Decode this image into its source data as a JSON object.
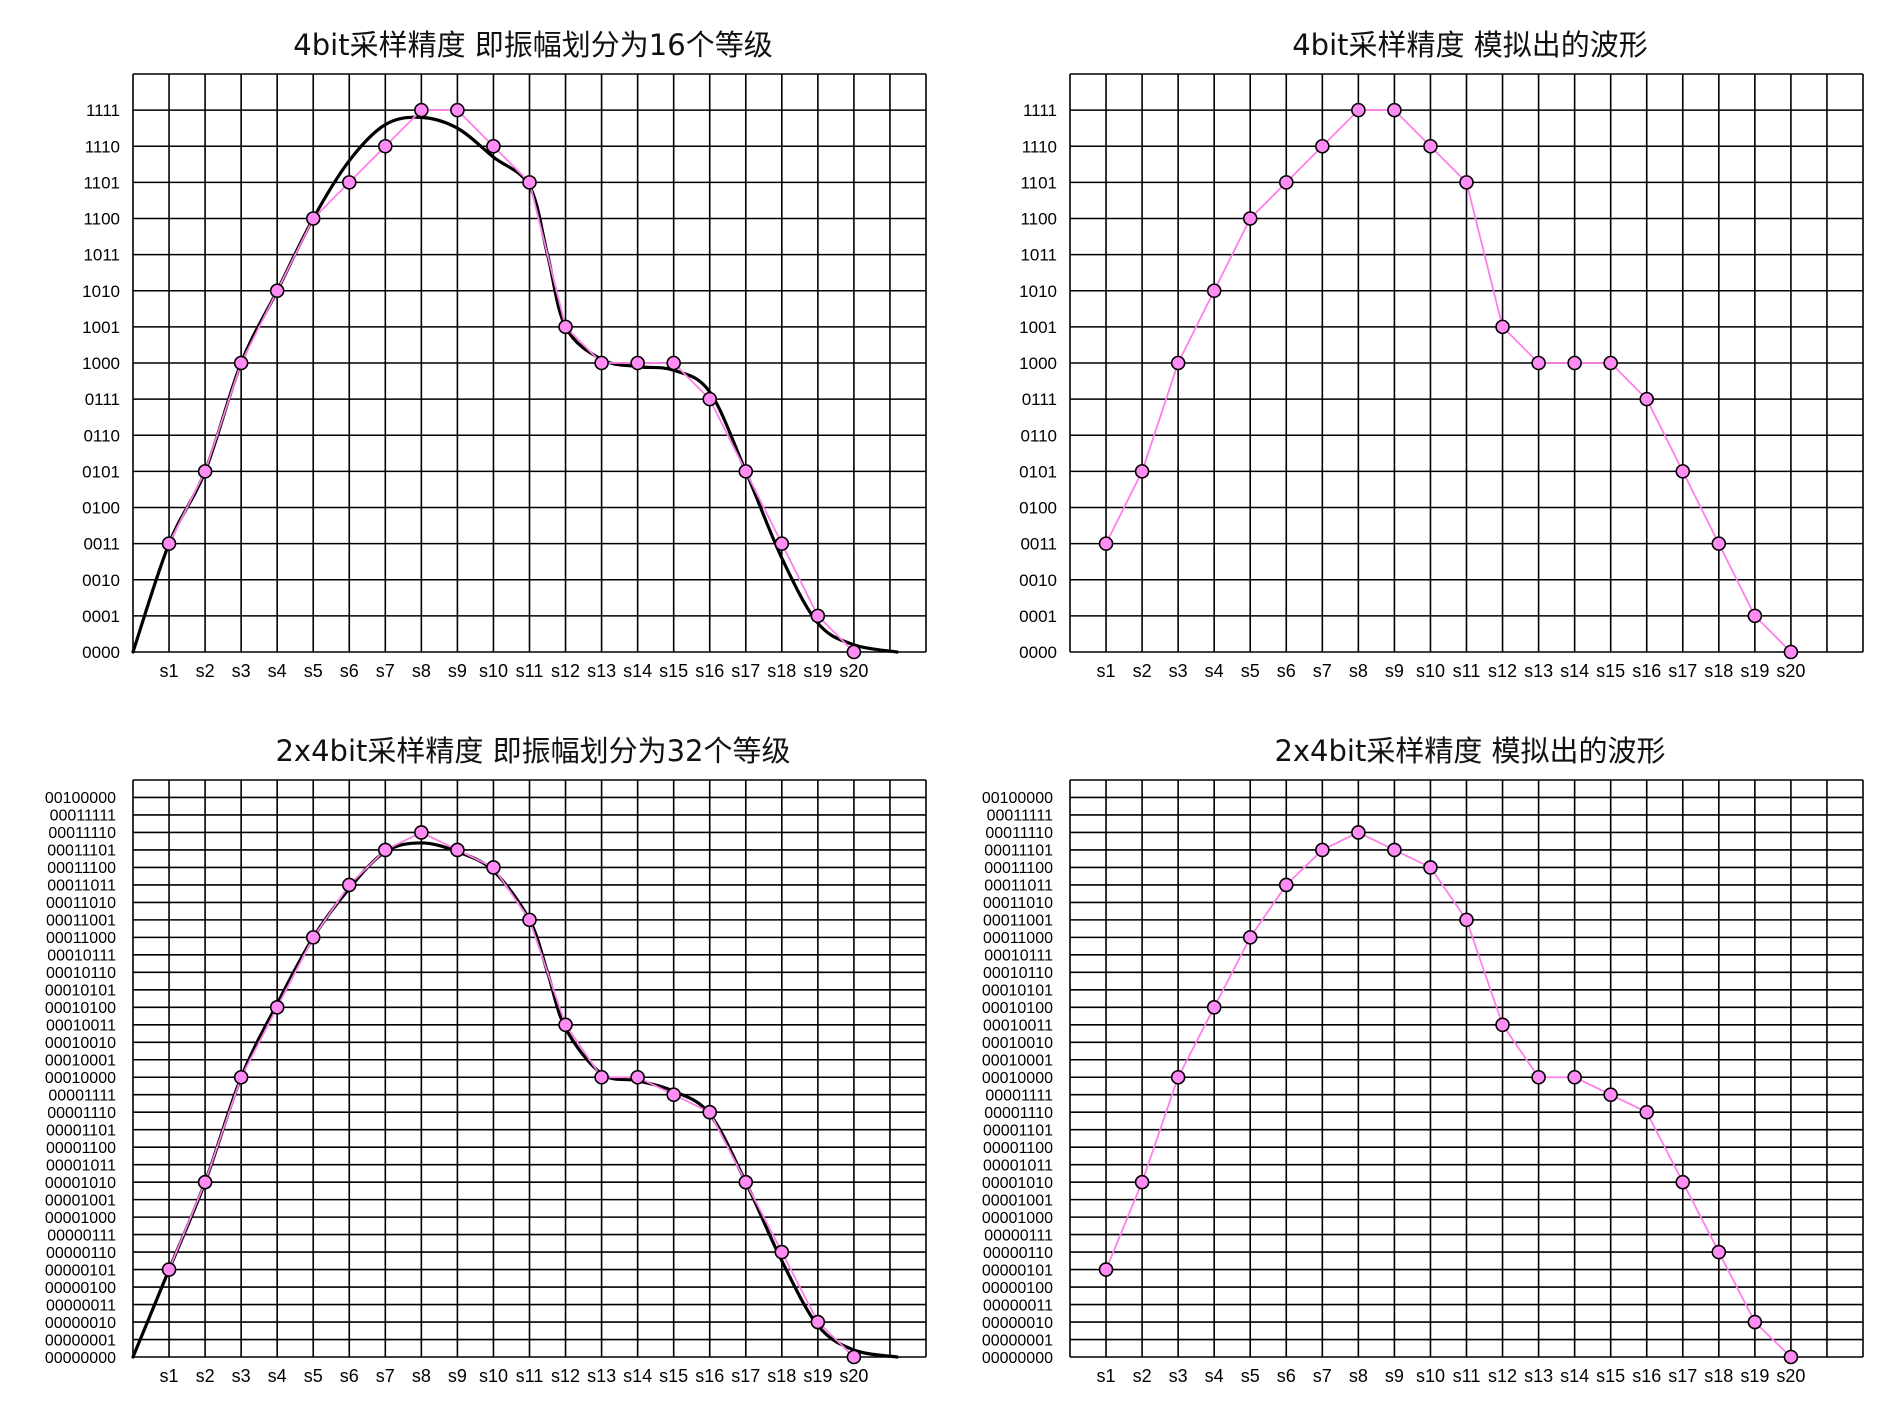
{
  "chart_data": [
    {
      "type": "line",
      "title": "4bit采样精度 即振幅划分为16个等级",
      "categories": [
        "s1",
        "s2",
        "s3",
        "s4",
        "s5",
        "s6",
        "s7",
        "s8",
        "s9",
        "s10",
        "s11",
        "s12",
        "s13",
        "s14",
        "s15",
        "s16",
        "s17",
        "s18",
        "s19",
        "s20"
      ],
      "y_ticks": [
        "0000",
        "0001",
        "0010",
        "0011",
        "0100",
        "0101",
        "0110",
        "0111",
        "1000",
        "1001",
        "1010",
        "1011",
        "1100",
        "1101",
        "1110",
        "1111"
      ],
      "ylim": [
        0,
        15
      ],
      "series": [
        {
          "values": [
            3,
            5,
            8,
            10,
            12,
            13,
            14,
            15,
            15,
            14,
            13,
            9,
            8,
            8,
            8,
            7,
            5,
            3,
            1,
            0
          ]
        }
      ],
      "analog_curve": {
        "x": [
          0,
          1,
          2,
          3,
          4,
          5,
          6,
          7,
          8,
          9,
          10,
          11,
          11.5,
          12,
          13,
          14,
          15,
          16,
          17,
          18,
          19,
          20,
          21.2
        ],
        "y": [
          0,
          3,
          5,
          8,
          10,
          12,
          13.6,
          14.6,
          14.8,
          14.5,
          13.7,
          12.9,
          11,
          9,
          8.1,
          7.9,
          7.8,
          7.2,
          5,
          2.6,
          0.8,
          0.2,
          0
        ]
      },
      "grid": true,
      "colors": {
        "sample_line": "#ff7fe9",
        "sample_marker": "#ff8cf5",
        "analog": "#000000"
      }
    },
    {
      "type": "line",
      "title": "4bit采样精度 模拟出的波形",
      "categories": [
        "s1",
        "s2",
        "s3",
        "s4",
        "s5",
        "s6",
        "s7",
        "s8",
        "s9",
        "s10",
        "s11",
        "s12",
        "s13",
        "s14",
        "s15",
        "s16",
        "s17",
        "s18",
        "s19",
        "s20"
      ],
      "y_ticks": [
        "0000",
        "0001",
        "0010",
        "0011",
        "0100",
        "0101",
        "0110",
        "0111",
        "1000",
        "1001",
        "1010",
        "1011",
        "1100",
        "1101",
        "1110",
        "1111"
      ],
      "ylim": [
        0,
        15
      ],
      "series": [
        {
          "values": [
            3,
            5,
            8,
            10,
            12,
            13,
            14,
            15,
            15,
            14,
            13,
            9,
            8,
            8,
            8,
            7,
            5,
            3,
            1,
            0
          ]
        }
      ],
      "grid": true,
      "colors": {
        "sample_line": "#ff7fe9",
        "sample_marker": "#ff8cf5"
      }
    },
    {
      "type": "line",
      "title": "2x4bit采样精度 即振幅划分为32个等级",
      "categories": [
        "s1",
        "s2",
        "s3",
        "s4",
        "s5",
        "s6",
        "s7",
        "s8",
        "s9",
        "s10",
        "s11",
        "s12",
        "s13",
        "s14",
        "s15",
        "s16",
        "s17",
        "s18",
        "s19",
        "s20"
      ],
      "y_ticks": [
        "00000000",
        "00000001",
        "00000010",
        "00000011",
        "00000100",
        "00000101",
        "00000110",
        "00000111",
        "00001000",
        "00001001",
        "00001010",
        "00001011",
        "00001100",
        "00001101",
        "00001110",
        "00001111",
        "00010000",
        "00010001",
        "00010010",
        "00010011",
        "00010100",
        "00010101",
        "00010110",
        "00010111",
        "00011000",
        "00011001",
        "00011010",
        "00011011",
        "00011100",
        "00011101",
        "00011110",
        "00011111",
        "00100000"
      ],
      "ylim": [
        0,
        32
      ],
      "series": [
        {
          "values": [
            5,
            10,
            16,
            20,
            24,
            27,
            29,
            30,
            29,
            28,
            25,
            19,
            16,
            16,
            15,
            14,
            10,
            6,
            2,
            0
          ]
        }
      ],
      "analog_curve": {
        "x": [
          0,
          1,
          2,
          3,
          4,
          5,
          6,
          7,
          8,
          9,
          10,
          11,
          11.5,
          12,
          13,
          14,
          15,
          16,
          17,
          18,
          19,
          20,
          21.2
        ],
        "y": [
          0,
          5,
          10,
          16,
          20.2,
          24,
          26.8,
          28.9,
          29.4,
          28.9,
          27.8,
          25,
          22,
          18.8,
          16.2,
          15.8,
          15.2,
          13.9,
          10,
          5.5,
          1.8,
          0.4,
          0
        ]
      },
      "grid": true,
      "colors": {
        "sample_line": "#ff7fe9",
        "sample_marker": "#ff8cf5",
        "analog": "#000000"
      }
    },
    {
      "type": "line",
      "title": "2x4bit采样精度 模拟出的波形",
      "categories": [
        "s1",
        "s2",
        "s3",
        "s4",
        "s5",
        "s6",
        "s7",
        "s8",
        "s9",
        "s10",
        "s11",
        "s12",
        "s13",
        "s14",
        "s15",
        "s16",
        "s17",
        "s18",
        "s19",
        "s20"
      ],
      "y_ticks": [
        "00000000",
        "00000001",
        "00000010",
        "00000011",
        "00000100",
        "00000101",
        "00000110",
        "00000111",
        "00001000",
        "00001001",
        "00001010",
        "00001011",
        "00001100",
        "00001101",
        "00001110",
        "00001111",
        "00010000",
        "00010001",
        "00010010",
        "00010011",
        "00010100",
        "00010101",
        "00010110",
        "00010111",
        "00011000",
        "00011001",
        "00011010",
        "00011011",
        "00011100",
        "00011101",
        "00011110",
        "00011111",
        "00100000"
      ],
      "ylim": [
        0,
        32
      ],
      "series": [
        {
          "values": [
            5,
            10,
            16,
            20,
            24,
            27,
            29,
            30,
            29,
            28,
            25,
            19,
            16,
            16,
            15,
            14,
            10,
            6,
            2,
            0
          ]
        }
      ],
      "grid": true,
      "colors": {
        "sample_line": "#ff7fe9",
        "sample_marker": "#ff8cf5"
      }
    }
  ]
}
